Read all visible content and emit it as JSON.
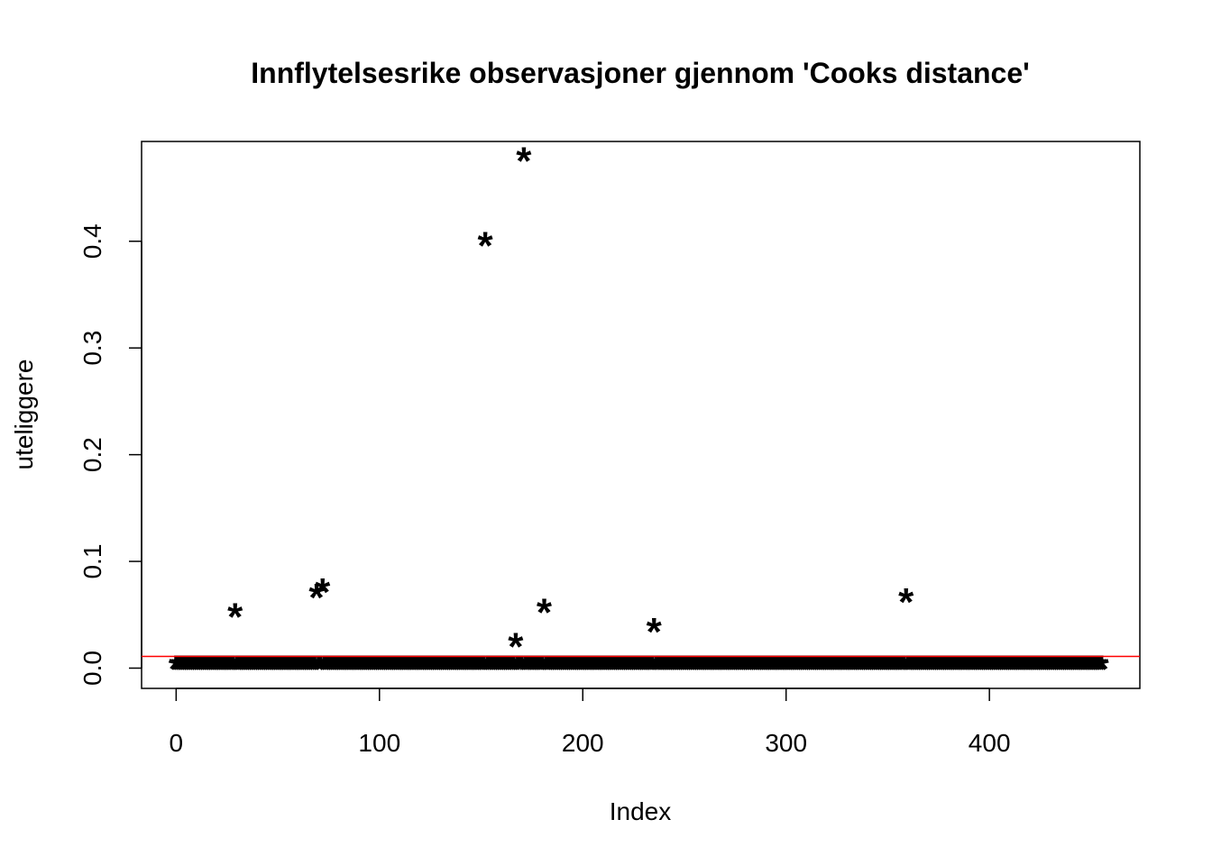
{
  "chart_data": {
    "type": "scatter",
    "title": "Innflytelsesrike observasjoner gjennom 'Cooks distance'",
    "xlabel": "Index",
    "ylabel": "uteliggere",
    "xlim": [
      -17,
      474
    ],
    "ylim": [
      -0.019,
      0.4935
    ],
    "x_ticks": [
      0,
      100,
      200,
      300,
      400
    ],
    "y_ticks": [
      0.0,
      0.1,
      0.2,
      0.3,
      0.4
    ],
    "x_tick_labels": [
      "0",
      "100",
      "200",
      "300",
      "400"
    ],
    "y_tick_labels": [
      "0.0",
      "0.1",
      "0.2",
      "0.3",
      "0.4"
    ],
    "marker": "*",
    "reference_line": {
      "y": 0.011,
      "color": "#ff0000"
    },
    "grid": false,
    "n_points": 456,
    "baseline_value": 0.0,
    "notable_points": [
      {
        "x": 29,
        "y": 0.049
      },
      {
        "x": 69,
        "y": 0.067
      },
      {
        "x": 72,
        "y": 0.072
      },
      {
        "x": 152,
        "y": 0.397
      },
      {
        "x": 167,
        "y": 0.021
      },
      {
        "x": 171,
        "y": 0.476
      },
      {
        "x": 181,
        "y": 0.053
      },
      {
        "x": 235,
        "y": 0.035
      },
      {
        "x": 359,
        "y": 0.063
      }
    ]
  }
}
